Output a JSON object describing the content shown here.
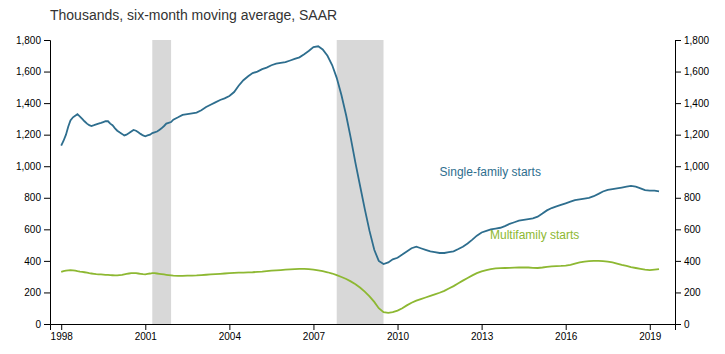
{
  "chart_data": {
    "type": "line",
    "title": "Thousands, six-month moving average, SAAR",
    "x": [
      1998.0,
      1998.08,
      1998.17,
      1998.25,
      1998.33,
      1998.42,
      1998.5,
      1998.58,
      1998.67,
      1998.75,
      1998.83,
      1998.92,
      1999.0,
      1999.08,
      1999.17,
      1999.25,
      1999.33,
      1999.42,
      1999.5,
      1999.58,
      1999.67,
      1999.75,
      1999.83,
      1999.92,
      2000.0,
      2000.08,
      2000.17,
      2000.25,
      2000.33,
      2000.42,
      2000.5,
      2000.58,
      2000.67,
      2000.75,
      2000.83,
      2000.92,
      2001.0,
      2001.08,
      2001.17,
      2001.25,
      2001.33,
      2001.42,
      2001.5,
      2001.58,
      2001.67,
      2001.75,
      2001.83,
      2001.92,
      2002.0,
      2002.17,
      2002.33,
      2002.5,
      2002.67,
      2002.83,
      2003.0,
      2003.17,
      2003.33,
      2003.5,
      2003.67,
      2003.83,
      2004.0,
      2004.17,
      2004.33,
      2004.5,
      2004.67,
      2004.83,
      2005.0,
      2005.17,
      2005.33,
      2005.5,
      2005.67,
      2005.83,
      2006.0,
      2006.17,
      2006.33,
      2006.5,
      2006.67,
      2006.83,
      2007.0,
      2007.17,
      2007.33,
      2007.5,
      2007.67,
      2007.83,
      2008.0,
      2008.17,
      2008.33,
      2008.5,
      2008.67,
      2008.83,
      2009.0,
      2009.17,
      2009.33,
      2009.5,
      2009.67,
      2009.83,
      2010.0,
      2010.17,
      2010.33,
      2010.5,
      2010.67,
      2010.83,
      2011.0,
      2011.17,
      2011.33,
      2011.5,
      2011.67,
      2011.83,
      2012.0,
      2012.17,
      2012.33,
      2012.5,
      2012.67,
      2012.83,
      2013.0,
      2013.17,
      2013.33,
      2013.5,
      2013.67,
      2013.83,
      2014.0,
      2014.17,
      2014.33,
      2014.5,
      2014.67,
      2014.83,
      2015.0,
      2015.17,
      2015.33,
      2015.5,
      2015.67,
      2015.83,
      2016.0,
      2016.17,
      2016.33,
      2016.5,
      2016.67,
      2016.83,
      2017.0,
      2017.17,
      2017.33,
      2017.5,
      2017.67,
      2017.83,
      2018.0,
      2018.17,
      2018.33,
      2018.5,
      2018.67,
      2018.83,
      2019.0,
      2019.17,
      2019.33
    ],
    "series": [
      {
        "color": "#2e6e8e",
        "values": [
          1130,
          1160,
          1200,
          1250,
          1290,
          1310,
          1320,
          1330,
          1315,
          1300,
          1285,
          1270,
          1260,
          1255,
          1260,
          1265,
          1270,
          1275,
          1280,
          1285,
          1285,
          1270,
          1260,
          1240,
          1225,
          1215,
          1205,
          1195,
          1200,
          1210,
          1220,
          1230,
          1225,
          1215,
          1205,
          1195,
          1190,
          1195,
          1200,
          1210,
          1215,
          1220,
          1230,
          1240,
          1255,
          1270,
          1275,
          1280,
          1295,
          1310,
          1325,
          1330,
          1335,
          1340,
          1355,
          1375,
          1390,
          1405,
          1420,
          1430,
          1445,
          1470,
          1510,
          1545,
          1570,
          1590,
          1600,
          1615,
          1625,
          1640,
          1650,
          1655,
          1660,
          1670,
          1680,
          1690,
          1710,
          1730,
          1755,
          1760,
          1740,
          1700,
          1640,
          1560,
          1450,
          1320,
          1180,
          1020,
          870,
          730,
          590,
          470,
          400,
          380,
          390,
          410,
          420,
          440,
          460,
          480,
          490,
          480,
          470,
          460,
          455,
          450,
          450,
          455,
          460,
          475,
          490,
          510,
          535,
          560,
          580,
          590,
          600,
          605,
          610,
          620,
          635,
          645,
          655,
          660,
          665,
          670,
          680,
          700,
          720,
          735,
          745,
          755,
          765,
          775,
          785,
          790,
          795,
          800,
          810,
          825,
          840,
          850,
          855,
          860,
          865,
          870,
          875,
          870,
          860,
          848,
          845,
          845,
          840
        ]
      },
      {
        "color": "#8db832",
        "values": [
          330,
          335,
          338,
          340,
          342,
          340,
          338,
          335,
          332,
          330,
          328,
          325,
          322,
          320,
          318,
          316,
          315,
          314,
          313,
          312,
          311,
          310,
          309,
          308,
          308,
          310,
          312,
          315,
          318,
          320,
          322,
          323,
          322,
          320,
          318,
          316,
          315,
          318,
          320,
          323,
          322,
          320,
          318,
          316,
          314,
          312,
          310,
          308,
          306,
          305,
          305,
          306,
          307,
          308,
          310,
          312,
          314,
          316,
          318,
          320,
          322,
          324,
          325,
          326,
          327,
          328,
          330,
          332,
          335,
          338,
          340,
          342,
          344,
          346,
          348,
          350,
          350,
          348,
          345,
          340,
          335,
          328,
          320,
          310,
          298,
          285,
          270,
          252,
          230,
          205,
          175,
          140,
          100,
          75,
          70,
          75,
          85,
          100,
          118,
          135,
          148,
          158,
          168,
          178,
          188,
          198,
          210,
          225,
          240,
          258,
          275,
          292,
          308,
          322,
          333,
          342,
          348,
          352,
          354,
          355,
          356,
          357,
          358,
          358,
          358,
          356,
          355,
          358,
          362,
          365,
          367,
          368,
          370,
          375,
          382,
          390,
          395,
          398,
          400,
          400,
          398,
          395,
          390,
          383,
          375,
          368,
          360,
          355,
          350,
          345,
          342,
          345,
          348
        ]
      }
    ],
    "annotations": [
      {
        "text": "Single-family starts",
        "x": 2011.5,
        "y": 960,
        "color": "#2e6e8e"
      },
      {
        "text": "Multifamily starts",
        "x": 2013.3,
        "y": 560,
        "color": "#8db832"
      }
    ],
    "shaded_ranges": [
      {
        "start": 2001.25,
        "end": 2001.92,
        "color": "#d8d8d8"
      },
      {
        "start": 2007.83,
        "end": 2009.5,
        "color": "#d8d8d8"
      }
    ],
    "xlim": [
      1997.6,
      2019.9
    ],
    "xticks": [
      1998,
      2001,
      2004,
      2007,
      2010,
      2013,
      2016,
      2019
    ],
    "ylim": [
      0,
      1800
    ],
    "yticks": [
      0,
      200,
      400,
      600,
      800,
      {
        "value": 1000,
        "label": "1,000"
      },
      {
        "value": 1200,
        "label": "1,200"
      },
      {
        "value": 1400,
        "label": "1,400"
      },
      {
        "value": 1600,
        "label": "1,600"
      },
      {
        "value": 1800,
        "label": "1,800"
      }
    ],
    "y2lim": [
      0,
      1800
    ],
    "y2ticks": [
      0,
      200,
      400,
      600,
      800,
      {
        "value": 1000,
        "label": "1,000"
      },
      {
        "value": 1200,
        "label": "1,200"
      },
      {
        "value": 1400,
        "label": "1,400"
      },
      {
        "value": 1600,
        "label": "1,600"
      },
      {
        "value": 1800,
        "label": "1,800"
      }
    ],
    "grid": false
  }
}
